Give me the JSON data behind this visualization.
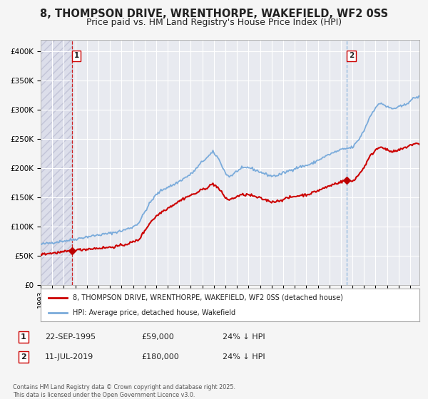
{
  "title": "8, THOMPSON DRIVE, WRENTHORPE, WAKEFIELD, WF2 0SS",
  "subtitle": "Price paid vs. HM Land Registry's House Price Index (HPI)",
  "title_fontsize": 10.5,
  "subtitle_fontsize": 9,
  "background_color": "#f5f5f5",
  "plot_bg_color": "#e8eaf0",
  "grid_color": "#ffffff",
  "ylim": [
    0,
    420000
  ],
  "yticks": [
    0,
    50000,
    100000,
    150000,
    200000,
    250000,
    300000,
    350000,
    400000
  ],
  "xlim_start": 1993.0,
  "xlim_end": 2025.8,
  "hpi_color": "#7aabdb",
  "price_color": "#cc0000",
  "marker_color": "#bb0000",
  "vline1_color": "#cc0000",
  "vline2_color": "#7aabdb",
  "point1_x": 1995.72,
  "point1_y": 59000,
  "point2_x": 2019.52,
  "point2_y": 180000,
  "legend_label1": "8, THOMPSON DRIVE, WRENTHORPE, WAKEFIELD, WF2 0SS (detached house)",
  "legend_label2": "HPI: Average price, detached house, Wakefield",
  "note1_label": "1",
  "note1_date": "22-SEP-1995",
  "note1_price": "£59,000",
  "note1_hpi": "24% ↓ HPI",
  "note2_label": "2",
  "note2_date": "11-JUL-2019",
  "note2_price": "£180,000",
  "note2_hpi": "24% ↓ HPI",
  "copyright": "Contains HM Land Registry data © Crown copyright and database right 2025.\nThis data is licensed under the Open Government Licence v3.0."
}
